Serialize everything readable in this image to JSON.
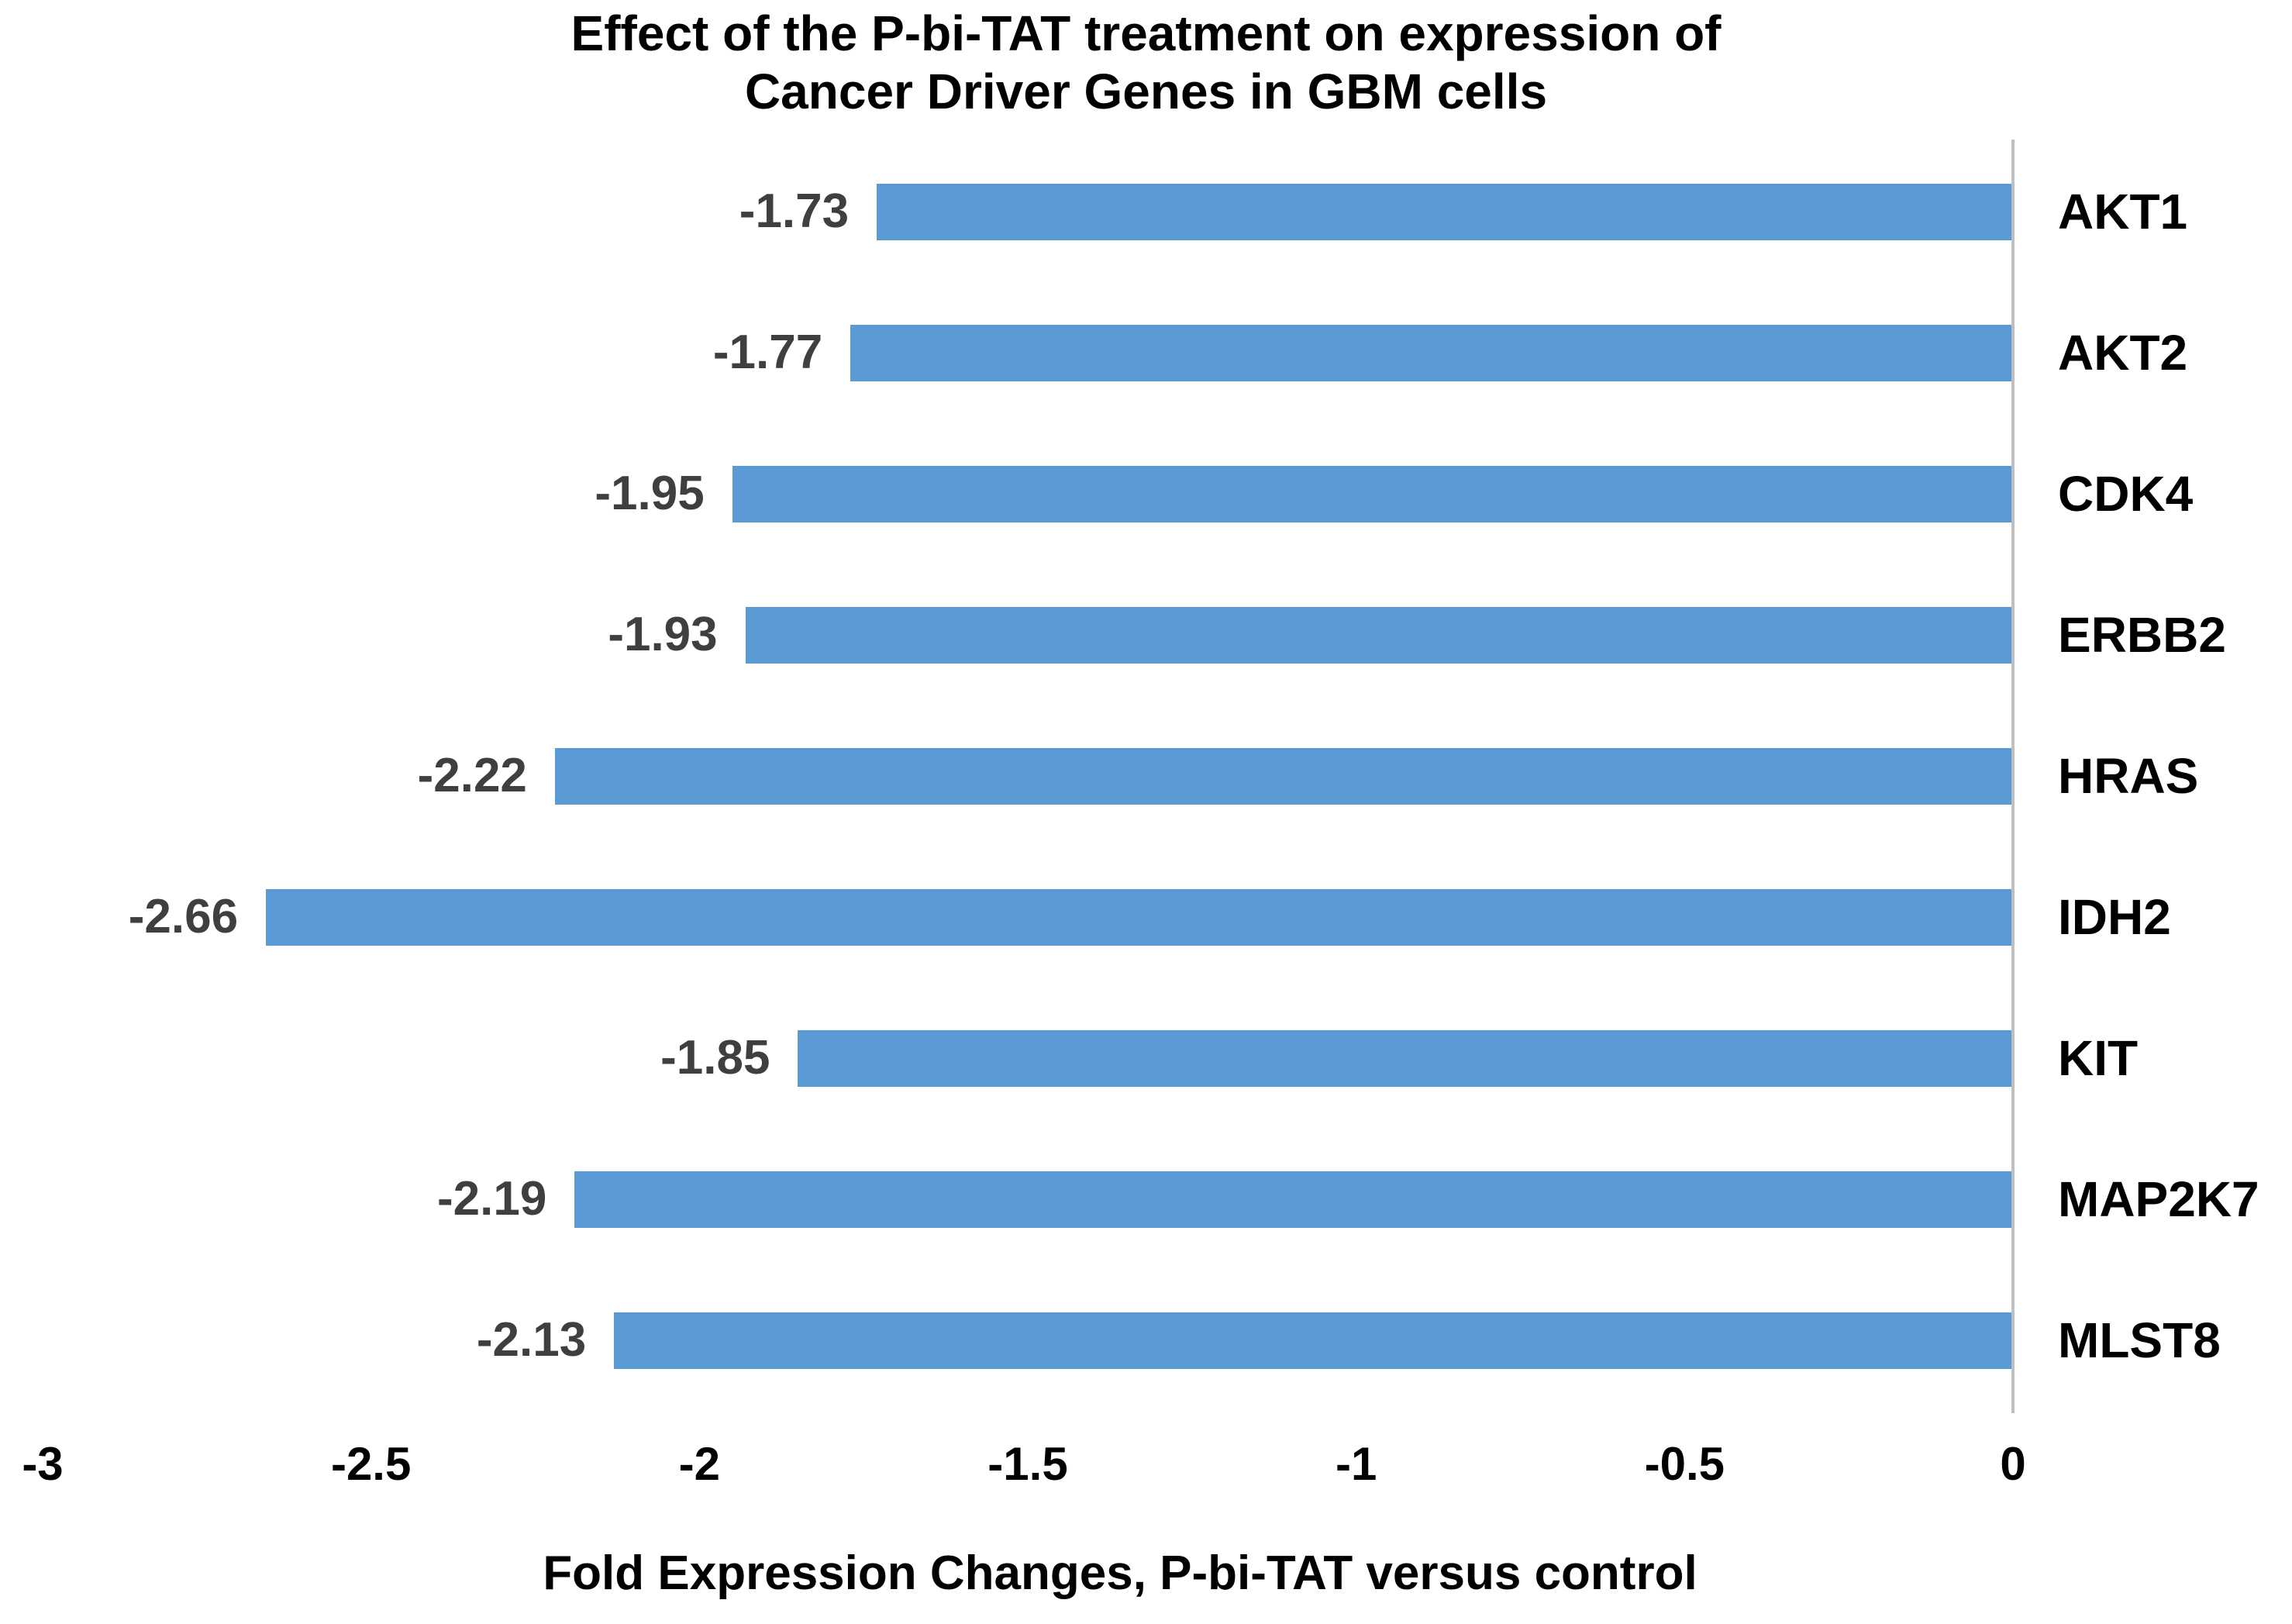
{
  "chart_data": {
    "type": "bar",
    "orientation": "horizontal",
    "title_lines": [
      "Effect of the P-bi-TAT treatment on expression of",
      "Cancer Driver Genes in GBM cells"
    ],
    "categories": [
      "AKT1",
      "AKT2",
      "CDK4",
      "ERBB2",
      "HRAS",
      "IDH2",
      "KIT",
      "MAP2K7",
      "MLST8"
    ],
    "values": [
      -1.73,
      -1.77,
      -1.95,
      -1.93,
      -2.22,
      -2.66,
      -1.85,
      -2.19,
      -2.13
    ],
    "data_labels": [
      "-1.73",
      "-1.77",
      "-1.95",
      "-1.93",
      "-2.22",
      "-2.66",
      "-1.85",
      "-2.19",
      "-2.13"
    ],
    "xlabel": "Fold Expression Changes, P-bi-TAT versus control",
    "xlim": [
      -3,
      0
    ],
    "x_ticks": [
      "-3",
      "-2.5",
      "-2",
      "-1.5",
      "-1",
      "-0.5",
      "0"
    ],
    "x_tick_values": [
      -3,
      -2.5,
      -2,
      -1.5,
      -1,
      -0.5,
      0
    ],
    "bar_color": "#5B9BD5",
    "axis_line_color": "#BFBFBF",
    "data_label_color": "#3F3F3F",
    "legend": "none",
    "grid": "off"
  }
}
